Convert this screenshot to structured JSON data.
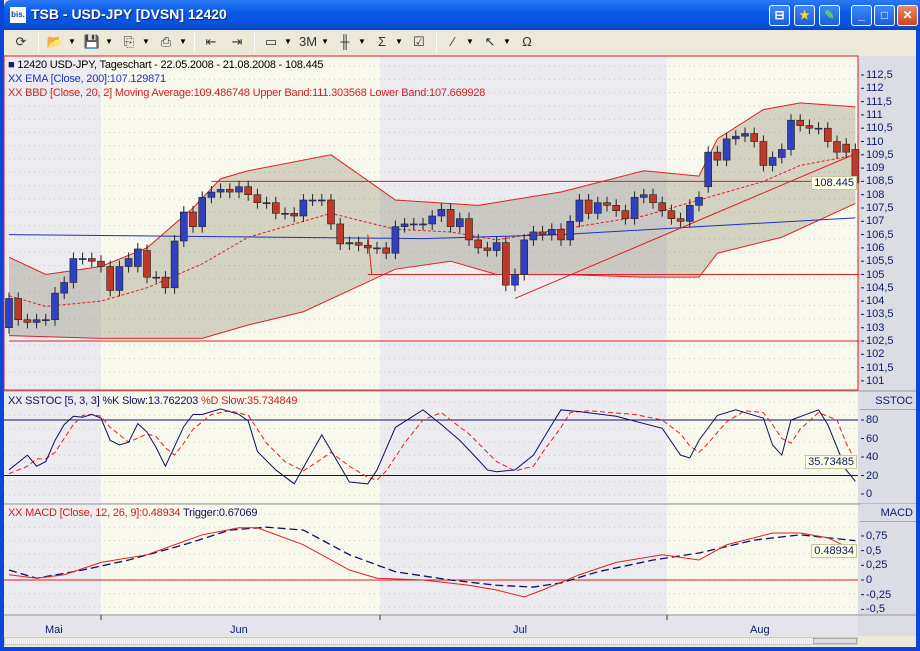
{
  "window": {
    "title": "TSB - USD-JPY [DVSN] 12420",
    "app_icon": "bis.",
    "title_buttons": [
      "pin-icon",
      "favorite-star-icon",
      "edit-pen-icon",
      "minimize-icon",
      "maximize-icon",
      "close-icon"
    ]
  },
  "toolbar": {
    "items": [
      {
        "icon": "refresh-icon",
        "glyph": "⟳",
        "dropdown": false
      },
      {
        "icon": "open-folder-icon",
        "glyph": "📂",
        "dropdown": true
      },
      {
        "icon": "save-disk-icon",
        "glyph": "💾",
        "dropdown": true
      },
      {
        "icon": "copy-icon",
        "glyph": "⎘",
        "dropdown": true
      },
      {
        "icon": "print-icon",
        "glyph": "⎙",
        "dropdown": true
      },
      {
        "icon": "chart-back-icon",
        "glyph": "⇤",
        "dropdown": false
      },
      {
        "icon": "chart-forward-icon",
        "glyph": "⇥",
        "dropdown": false
      },
      {
        "icon": "window-layout-icon",
        "glyph": "▭",
        "dropdown": true
      },
      {
        "icon": "period-3m-icon",
        "glyph": "3M",
        "dropdown": true
      },
      {
        "icon": "candlestick-icon",
        "glyph": "╫",
        "dropdown": true
      },
      {
        "icon": "indicator-sigma-icon",
        "glyph": "Σ",
        "dropdown": true
      },
      {
        "icon": "properties-icon",
        "glyph": "☑",
        "dropdown": false
      },
      {
        "icon": "draw-line-icon",
        "glyph": "⁄",
        "dropdown": true
      },
      {
        "icon": "cursor-arrow-icon",
        "glyph": "↖",
        "dropdown": true
      },
      {
        "icon": "magnet-icon",
        "glyph": "Ω",
        "dropdown": false
      }
    ]
  },
  "legend": {
    "main": "12420  USD-JPY, Tageschart - 22.05.2008 - 21.08.2008 - 108.445",
    "ema": "XX EMA [Close, 200]:107.129871",
    "bbd": "XX BBD [Close, 20, 2] Moving Average:109.486748 Upper Band:111.303568 Lower Band:107.669928",
    "sstoc_k": "XX SSTOC [5, 3, 3] %K Slow:13.762203",
    "sstoc_d": "%D Slow:35.734849",
    "macd": "XX MACD [Close, 12, 26, 9]:0.48934",
    "trigger": "Trigger:0.67069"
  },
  "colors": {
    "up": "#3040c0",
    "down": "#c03828",
    "bollinger": "#e02020",
    "ema": "#2030c0",
    "stoch_k": "#101060",
    "stoch_d": "#e02020",
    "macd": "#e02020",
    "trigger": "#101060",
    "month_band_a": "#ebebf0",
    "month_band_b": "#f8f8ec"
  },
  "chart_data": [
    {
      "type": "candlestick",
      "panel": "price",
      "x_axis": {
        "months": [
          "Mai",
          "Jun",
          "Jul",
          "Aug"
        ]
      },
      "y_ticks": [
        "112,5",
        "112",
        "111,5",
        "111",
        "110,5",
        "110",
        "109,5",
        "109",
        "108,5",
        "108",
        "107,5",
        "107",
        "106,5",
        "106",
        "105,5",
        "105",
        "104,5",
        "104",
        "103,5",
        "103",
        "102,5",
        "102",
        "101,5",
        "101"
      ],
      "ylim": [
        101,
        112.5
      ],
      "last_price": "108.445",
      "open": [
        103.0,
        104.1,
        103.3,
        103.2,
        103.3,
        103.3,
        104.3,
        104.7,
        105.6,
        105.6,
        105.5,
        105.3,
        104.4,
        105.3,
        105.3,
        105.9,
        104.9,
        104.9,
        104.5,
        106.26,
        107.35,
        106.8,
        107.9,
        108.1,
        108.2,
        108.1,
        108.3,
        108.0,
        107.7,
        107.7,
        107.3,
        107.3,
        107.2,
        107.8,
        107.8,
        107.8,
        106.9,
        106.15,
        106.2,
        106.1,
        106.0,
        106.0,
        105.8,
        106.8,
        106.9,
        106.9,
        106.9,
        107.2,
        107.45,
        106.8,
        107.1,
        106.3,
        106.0,
        105.9,
        106.2,
        104.6,
        105.0,
        106.3,
        106.6,
        106.5,
        106.7,
        106.3,
        107.0,
        107.8,
        107.3,
        107.7,
        107.6,
        107.4,
        107.1,
        107.9,
        108.0,
        107.7,
        107.4,
        107.1,
        107.0,
        107.6,
        108.3,
        109.6,
        109.3,
        110.1,
        110.2,
        110.3,
        110.0,
        109.1,
        109.4,
        109.7,
        110.8,
        110.6,
        110.5,
        110.5,
        110.0,
        109.9,
        109.7
      ],
      "close": [
        104.1,
        103.3,
        103.2,
        103.3,
        103.3,
        104.3,
        104.7,
        105.6,
        105.6,
        105.5,
        105.3,
        104.4,
        105.3,
        105.6,
        105.96,
        104.9,
        104.9,
        104.5,
        106.26,
        107.35,
        106.8,
        107.9,
        108.1,
        108.2,
        108.1,
        108.3,
        108.0,
        107.7,
        107.7,
        107.3,
        107.3,
        107.2,
        107.8,
        107.8,
        107.8,
        106.9,
        106.15,
        106.2,
        106.1,
        106.0,
        106.0,
        105.8,
        106.8,
        106.9,
        106.9,
        106.9,
        107.2,
        107.45,
        106.8,
        107.1,
        106.3,
        106.0,
        105.9,
        106.2,
        104.6,
        105.0,
        106.3,
        106.6,
        106.5,
        106.7,
        106.3,
        107.0,
        107.8,
        107.3,
        107.7,
        107.6,
        107.4,
        107.1,
        107.9,
        108.0,
        107.7,
        107.4,
        107.1,
        107.0,
        107.6,
        107.9,
        109.6,
        109.3,
        110.1,
        110.2,
        110.3,
        110.0,
        109.1,
        109.4,
        109.7,
        110.8,
        110.6,
        110.5,
        110.5,
        110.0,
        109.6,
        109.6,
        108.445
      ],
      "ema200": [
        [
          0,
          106.5
        ],
        [
          45,
          106.35
        ],
        [
          60,
          106.5
        ],
        [
          75,
          106.8
        ],
        [
          92,
          107.13
        ]
      ],
      "bb_upper": [
        [
          0,
          105.65
        ],
        [
          4,
          105.0
        ],
        [
          10,
          105.3
        ],
        [
          15,
          106.0
        ],
        [
          20,
          107.5
        ],
        [
          23,
          108.6
        ],
        [
          26,
          108.9
        ],
        [
          35,
          109.5
        ],
        [
          42,
          107.8
        ],
        [
          51,
          107.6
        ],
        [
          60,
          108.1
        ],
        [
          69,
          108.9
        ],
        [
          75,
          108.7
        ],
        [
          77,
          110.1
        ],
        [
          82,
          111.2
        ],
        [
          86,
          111.45
        ],
        [
          92,
          111.3
        ]
      ],
      "bb_mid": [
        [
          0,
          104.2
        ],
        [
          4,
          103.8
        ],
        [
          10,
          104.0
        ],
        [
          15,
          104.5
        ],
        [
          21,
          105.4
        ],
        [
          26,
          106.4
        ],
        [
          32,
          107.0
        ],
        [
          35,
          107.3
        ],
        [
          42,
          106.7
        ],
        [
          48,
          106.6
        ],
        [
          53,
          106.3
        ],
        [
          60,
          106.7
        ],
        [
          69,
          107.2
        ],
        [
          75,
          107.8
        ],
        [
          82,
          108.5
        ],
        [
          86,
          109.1
        ],
        [
          92,
          109.49
        ]
      ],
      "bb_lower": [
        [
          0,
          102.7
        ],
        [
          10,
          102.6
        ],
        [
          21,
          102.6
        ],
        [
          26,
          103.1
        ],
        [
          32,
          103.6
        ],
        [
          37,
          104.4
        ],
        [
          42,
          105.2
        ],
        [
          48,
          105.5
        ],
        [
          53,
          105.0
        ],
        [
          60,
          105.0
        ],
        [
          69,
          104.9
        ],
        [
          75,
          104.9
        ],
        [
          77,
          105.8
        ],
        [
          84,
          106.4
        ],
        [
          92,
          107.67
        ]
      ],
      "lines": [
        {
          "from": [
            22,
            108.5
          ],
          "to": [
            92,
            108.5
          ]
        },
        {
          "from": [
            39,
            105.0
          ],
          "to": [
            92,
            105.0
          ]
        },
        {
          "from": [
            0,
            102.5
          ],
          "to": [
            92,
            102.5
          ]
        },
        {
          "from": [
            39,
            106.5
          ],
          "to": [
            39,
            105.0
          ]
        },
        {
          "from": [
            55,
            104.1
          ],
          "to": [
            92,
            109.6
          ]
        }
      ]
    },
    {
      "type": "line",
      "panel": "sstoc",
      "title": "SSTOC",
      "y_ticks": [
        "80",
        "60",
        "40",
        "20",
        "0"
      ],
      "ylim": [
        -3,
        105
      ],
      "levels": [
        20,
        80
      ],
      "last_value": "35.73485",
      "k": [
        [
          0,
          26
        ],
        [
          2,
          42
        ],
        [
          3,
          30
        ],
        [
          4,
          35
        ],
        [
          5,
          58
        ],
        [
          6,
          75
        ],
        [
          7,
          84
        ],
        [
          8,
          83
        ],
        [
          9,
          86
        ],
        [
          10,
          82
        ],
        [
          11,
          58
        ],
        [
          12,
          53
        ],
        [
          13,
          56
        ],
        [
          14,
          76
        ],
        [
          15,
          67
        ],
        [
          16,
          50
        ],
        [
          17,
          30
        ],
        [
          19,
          73
        ],
        [
          20,
          86
        ],
        [
          21,
          86
        ],
        [
          23,
          92
        ],
        [
          25,
          86
        ],
        [
          26,
          79
        ],
        [
          27,
          46
        ],
        [
          29,
          26
        ],
        [
          31,
          11
        ],
        [
          34,
          64
        ],
        [
          36,
          30
        ],
        [
          37,
          13
        ],
        [
          39,
          11
        ],
        [
          40,
          26
        ],
        [
          42,
          72
        ],
        [
          45,
          91
        ],
        [
          47,
          75
        ],
        [
          49,
          58
        ],
        [
          51,
          37
        ],
        [
          52,
          26
        ],
        [
          53,
          24
        ],
        [
          55,
          26
        ],
        [
          57,
          42
        ],
        [
          59,
          75
        ],
        [
          60,
          91
        ],
        [
          62,
          89
        ],
        [
          66,
          84
        ],
        [
          71,
          71
        ],
        [
          73,
          42
        ],
        [
          74,
          39
        ],
        [
          75,
          58
        ],
        [
          77,
          85
        ],
        [
          79,
          91
        ],
        [
          82,
          82
        ],
        [
          83,
          53
        ],
        [
          84,
          42
        ],
        [
          85,
          80
        ],
        [
          88,
          91
        ],
        [
          89,
          75
        ],
        [
          91,
          26
        ],
        [
          92,
          13.76
        ]
      ],
      "d": [
        [
          0,
          22
        ],
        [
          2,
          30
        ],
        [
          3,
          38
        ],
        [
          4,
          38
        ],
        [
          5,
          45
        ],
        [
          6,
          60
        ],
        [
          7,
          75
        ],
        [
          8,
          85
        ],
        [
          9,
          86
        ],
        [
          10,
          84
        ],
        [
          11,
          72
        ],
        [
          12,
          64
        ],
        [
          13,
          56
        ],
        [
          15,
          65
        ],
        [
          16,
          62
        ],
        [
          17,
          50
        ],
        [
          18,
          42
        ],
        [
          19,
          55
        ],
        [
          20,
          70
        ],
        [
          22,
          86
        ],
        [
          24,
          90
        ],
        [
          26,
          85
        ],
        [
          27,
          70
        ],
        [
          28,
          55
        ],
        [
          30,
          35
        ],
        [
          32,
          25
        ],
        [
          34,
          38
        ],
        [
          35,
          45
        ],
        [
          37,
          30
        ],
        [
          39,
          18
        ],
        [
          40,
          15
        ],
        [
          41,
          25
        ],
        [
          43,
          55
        ],
        [
          45,
          80
        ],
        [
          47,
          88
        ],
        [
          48,
          80
        ],
        [
          50,
          65
        ],
        [
          52,
          45
        ],
        [
          53,
          35
        ],
        [
          55,
          25
        ],
        [
          57,
          30
        ],
        [
          58,
          45
        ],
        [
          60,
          72
        ],
        [
          61,
          88
        ],
        [
          63,
          90
        ],
        [
          68,
          86
        ],
        [
          71,
          80
        ],
        [
          73,
          65
        ],
        [
          74,
          52
        ],
        [
          75,
          45
        ],
        [
          76,
          55
        ],
        [
          78,
          78
        ],
        [
          80,
          90
        ],
        [
          82,
          88
        ],
        [
          83,
          75
        ],
        [
          84,
          60
        ],
        [
          85,
          55
        ],
        [
          86,
          70
        ],
        [
          88,
          88
        ],
        [
          90,
          80
        ],
        [
          91,
          55
        ],
        [
          92,
          35.73
        ]
      ]
    },
    {
      "type": "line",
      "panel": "macd",
      "title": "MACD",
      "y_ticks": [
        "0,75",
        "0,5",
        "0,25",
        "0",
        "-0,25",
        "-0,5"
      ],
      "ylim": [
        -0.58,
        1.0
      ],
      "levels": [
        0
      ],
      "last_value": "0.48934",
      "macd": [
        [
          0,
          0.09
        ],
        [
          3,
          0.03
        ],
        [
          6,
          0.09
        ],
        [
          10,
          0.3
        ],
        [
          15,
          0.43
        ],
        [
          21,
          0.77
        ],
        [
          25,
          0.89
        ],
        [
          27,
          0.89
        ],
        [
          32,
          0.6
        ],
        [
          37,
          0.17
        ],
        [
          40,
          0.03
        ],
        [
          45,
          0
        ],
        [
          50,
          -0.09
        ],
        [
          53,
          -0.17
        ],
        [
          56,
          -0.29
        ],
        [
          58,
          -0.17
        ],
        [
          62,
          0.09
        ],
        [
          66,
          0.3
        ],
        [
          71,
          0.43
        ],
        [
          75,
          0.34
        ],
        [
          78,
          0.6
        ],
        [
          83,
          0.8
        ],
        [
          86,
          0.8
        ],
        [
          89,
          0.72
        ],
        [
          92,
          0.49
        ]
      ],
      "trigger": [
        [
          0,
          0.17
        ],
        [
          3,
          0.03
        ],
        [
          8,
          0.17
        ],
        [
          13,
          0.34
        ],
        [
          19,
          0.6
        ],
        [
          24,
          0.85
        ],
        [
          28,
          0.9
        ],
        [
          32,
          0.85
        ],
        [
          37,
          0.43
        ],
        [
          42,
          0.14
        ],
        [
          48,
          0
        ],
        [
          53,
          -0.09
        ],
        [
          57,
          -0.12
        ],
        [
          60,
          -0.05
        ],
        [
          64,
          0.14
        ],
        [
          70,
          0.34
        ],
        [
          75,
          0.46
        ],
        [
          81,
          0.68
        ],
        [
          86,
          0.77
        ],
        [
          92,
          0.67
        ]
      ]
    }
  ]
}
